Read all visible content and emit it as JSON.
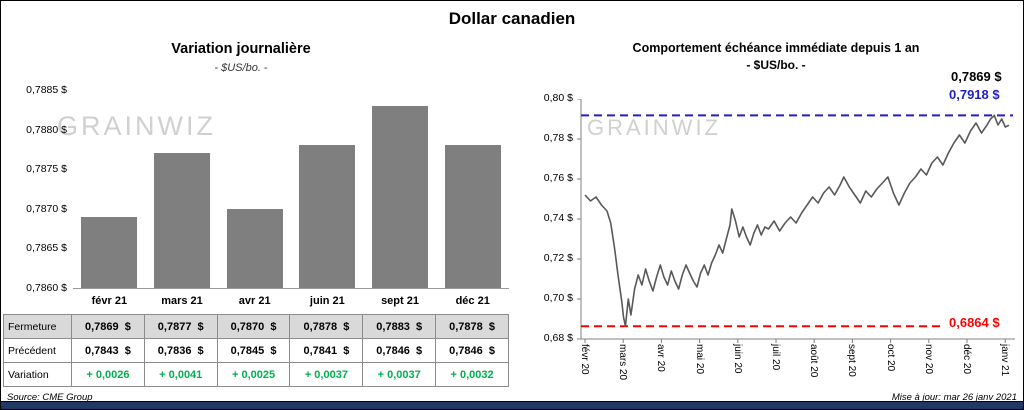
{
  "page": {
    "title": "Dollar canadien",
    "source": "Source: CME Group",
    "updated": "Mise à jour: mar 26 janv 2021"
  },
  "colors": {
    "navy": "#1F3864",
    "bar": "#7F7F7F",
    "line": "#595959",
    "green": "#00B050",
    "blue": "#2020C8",
    "red": "#FF0000",
    "shaded_row": "#D9D9D9",
    "watermark": "#C8C8C8"
  },
  "left_chart": {
    "title": "Variation journalière",
    "subtitle": "- $US/bo. -",
    "watermark": "GRAINWIZ",
    "y_ticks": [
      "0,7885 $",
      "0,7880 $",
      "0,7875 $",
      "0,7870 $",
      "0,7865 $",
      "0,7860 $"
    ],
    "table": {
      "rows": [
        {
          "label": "Fermeture",
          "values": [
            "0,7869  $",
            "0,7877  $",
            "0,7870  $",
            "0,7878  $",
            "0,7883  $",
            "0,7878  $"
          ]
        },
        {
          "label": "Précédent",
          "values": [
            "0,7843  $",
            "0,7836  $",
            "0,7845  $",
            "0,7841  $",
            "0,7846  $",
            "0,7846  $"
          ]
        },
        {
          "label": "Variation",
          "values": [
            "+ 0,0026",
            "+ 0,0041",
            "+ 0,0025",
            "+ 0,0037",
            "+ 0,0037",
            "+ 0,0032"
          ]
        }
      ]
    }
  },
  "right_chart": {
    "title": "Comportement échéance immédiate depuis 1 an",
    "subtitle": "- $US/bo. -",
    "watermark": "GRAINWIZ",
    "y_ticks": [
      "0,80 $",
      "0,78 $",
      "0,76 $",
      "0,74 $",
      "0,72 $",
      "0,70 $",
      "0,68 $"
    ],
    "x_labels": [
      "févr 20",
      "mars 20",
      "avr 20",
      "mai 20",
      "juin 20",
      "juil 20",
      "août 20",
      "sept 20",
      "oct 20",
      "nov 20",
      "déc 20",
      "janv 21"
    ],
    "last_label": "0,7869 $",
    "ref_high": {
      "value": 0.7918,
      "label": "0,7918 $"
    },
    "ref_low": {
      "value": 0.6864,
      "label": "0,6864 $"
    }
  },
  "chart_data": [
    {
      "type": "bar",
      "title": "Variation journalière - $US/bo.",
      "categories": [
        "févr 21",
        "mars 21",
        "avr 21",
        "juin 21",
        "sept 21",
        "déc 21"
      ],
      "values": [
        0.7869,
        0.7877,
        0.787,
        0.7878,
        0.7883,
        0.7878
      ],
      "previous": [
        0.7843,
        0.7836,
        0.7845,
        0.7841,
        0.7846,
        0.7846
      ],
      "variation": [
        0.0026,
        0.0041,
        0.0025,
        0.0037,
        0.0037,
        0.0032
      ],
      "ylim": [
        0.786,
        0.7885
      ],
      "ylabel": "$US/bo.",
      "grid": false
    },
    {
      "type": "line",
      "title": "Comportement échéance immédiate depuis 1 an - $US/bo.",
      "x_unit": "months since févr 20 (0 = févr 20, 11 = janv 21)",
      "x": [
        0,
        0.15,
        0.3,
        0.45,
        0.6,
        0.7,
        0.8,
        0.9,
        1.0,
        1.05,
        1.1,
        1.18,
        1.25,
        1.35,
        1.45,
        1.55,
        1.65,
        1.75,
        1.85,
        1.95,
        2.05,
        2.15,
        2.25,
        2.35,
        2.45,
        2.55,
        2.65,
        2.75,
        2.85,
        2.95,
        3.05,
        3.15,
        3.25,
        3.35,
        3.45,
        3.55,
        3.65,
        3.75,
        3.85,
        3.95,
        4.0,
        4.1,
        4.2,
        4.3,
        4.4,
        4.5,
        4.6,
        4.7,
        4.8,
        4.9,
        5.0,
        5.15,
        5.3,
        5.45,
        5.6,
        5.75,
        5.9,
        6.05,
        6.2,
        6.35,
        6.5,
        6.65,
        6.8,
        6.95,
        7.05,
        7.2,
        7.35,
        7.5,
        7.65,
        7.8,
        7.95,
        8.1,
        8.25,
        8.4,
        8.55,
        8.7,
        8.85,
        9.0,
        9.15,
        9.3,
        9.45,
        9.6,
        9.75,
        9.9,
        10.05,
        10.2,
        10.35,
        10.5,
        10.65,
        10.8,
        10.95,
        11.05,
        11.15,
        11.25,
        11.35,
        11.45,
        11.55
      ],
      "y": [
        0.752,
        0.749,
        0.751,
        0.747,
        0.744,
        0.738,
        0.726,
        0.712,
        0.699,
        0.691,
        0.6864,
        0.7,
        0.692,
        0.705,
        0.712,
        0.707,
        0.715,
        0.709,
        0.704,
        0.711,
        0.717,
        0.711,
        0.707,
        0.714,
        0.709,
        0.705,
        0.712,
        0.717,
        0.713,
        0.709,
        0.706,
        0.713,
        0.717,
        0.712,
        0.718,
        0.722,
        0.727,
        0.723,
        0.73,
        0.737,
        0.745,
        0.739,
        0.731,
        0.736,
        0.731,
        0.727,
        0.733,
        0.737,
        0.732,
        0.736,
        0.735,
        0.739,
        0.734,
        0.738,
        0.741,
        0.738,
        0.743,
        0.747,
        0.751,
        0.748,
        0.753,
        0.756,
        0.752,
        0.757,
        0.761,
        0.756,
        0.752,
        0.748,
        0.754,
        0.751,
        0.755,
        0.758,
        0.761,
        0.753,
        0.747,
        0.753,
        0.758,
        0.761,
        0.765,
        0.762,
        0.768,
        0.771,
        0.767,
        0.773,
        0.778,
        0.782,
        0.778,
        0.784,
        0.788,
        0.783,
        0.787,
        0.79,
        0.7918,
        0.787,
        0.79,
        0.786,
        0.7869
      ],
      "ylim": [
        0.68,
        0.8
      ],
      "last_value": 0.7869,
      "high_52wk": 0.7918,
      "low_52wk": 0.6864,
      "grid": false
    }
  ]
}
